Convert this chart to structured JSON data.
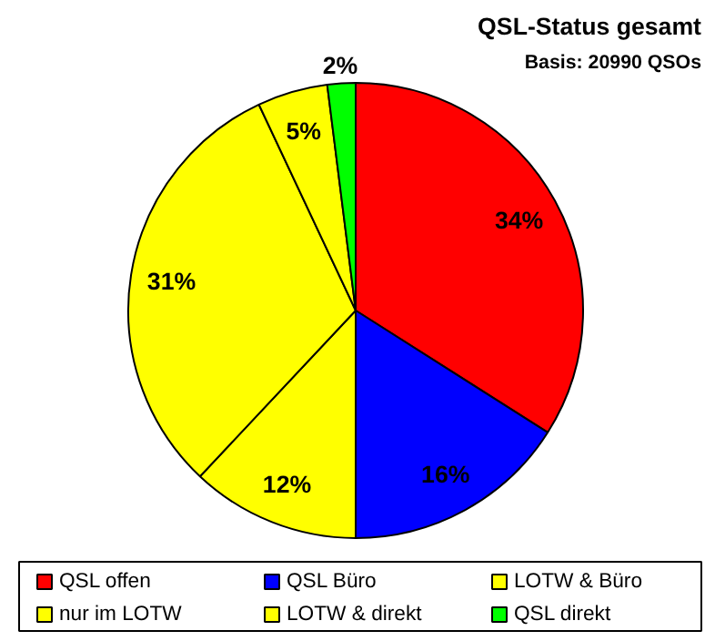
{
  "chart_data": {
    "type": "pie",
    "title": "QSL-Status gesamt",
    "subtitle": "Basis: 20990 QSOs",
    "categories": [
      "QSL offen",
      "QSL Büro",
      "LOTW & Büro",
      "nur im LOTW",
      "LOTW & direkt",
      "QSL direkt"
    ],
    "values": [
      34,
      16,
      12,
      31,
      5,
      2
    ],
    "colors": [
      "#ff0000",
      "#0000ff",
      "#ffff00",
      "#ffff00",
      "#ffff00",
      "#00ff00"
    ],
    "value_labels": [
      "34%",
      "16%",
      "12%",
      "31%",
      "5%",
      "2%"
    ],
    "legend": "bottom"
  }
}
